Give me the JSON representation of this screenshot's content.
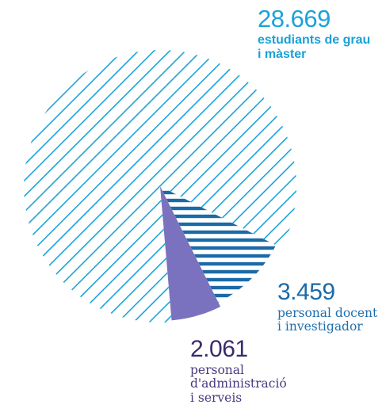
{
  "chart_data": {
    "type": "pie",
    "title": "",
    "slices": [
      {
        "value": 28669,
        "value_label": "28.669",
        "label_lines": [
          "estudiants de grau",
          "i màster"
        ],
        "color": "#1aa3d9",
        "fill": "diagonal-hatch"
      },
      {
        "value": 3459,
        "value_label": "3.459",
        "label_lines": [
          "personal docent",
          "i investigador"
        ],
        "color": "#1b6aa8",
        "fill": "horizontal-hatch"
      },
      {
        "value": 2061,
        "value_label": "2.061",
        "label_lines": [
          "personal",
          "d'administració",
          "i serveis"
        ],
        "color": "#7b72bf",
        "fill": "solid"
      }
    ]
  }
}
